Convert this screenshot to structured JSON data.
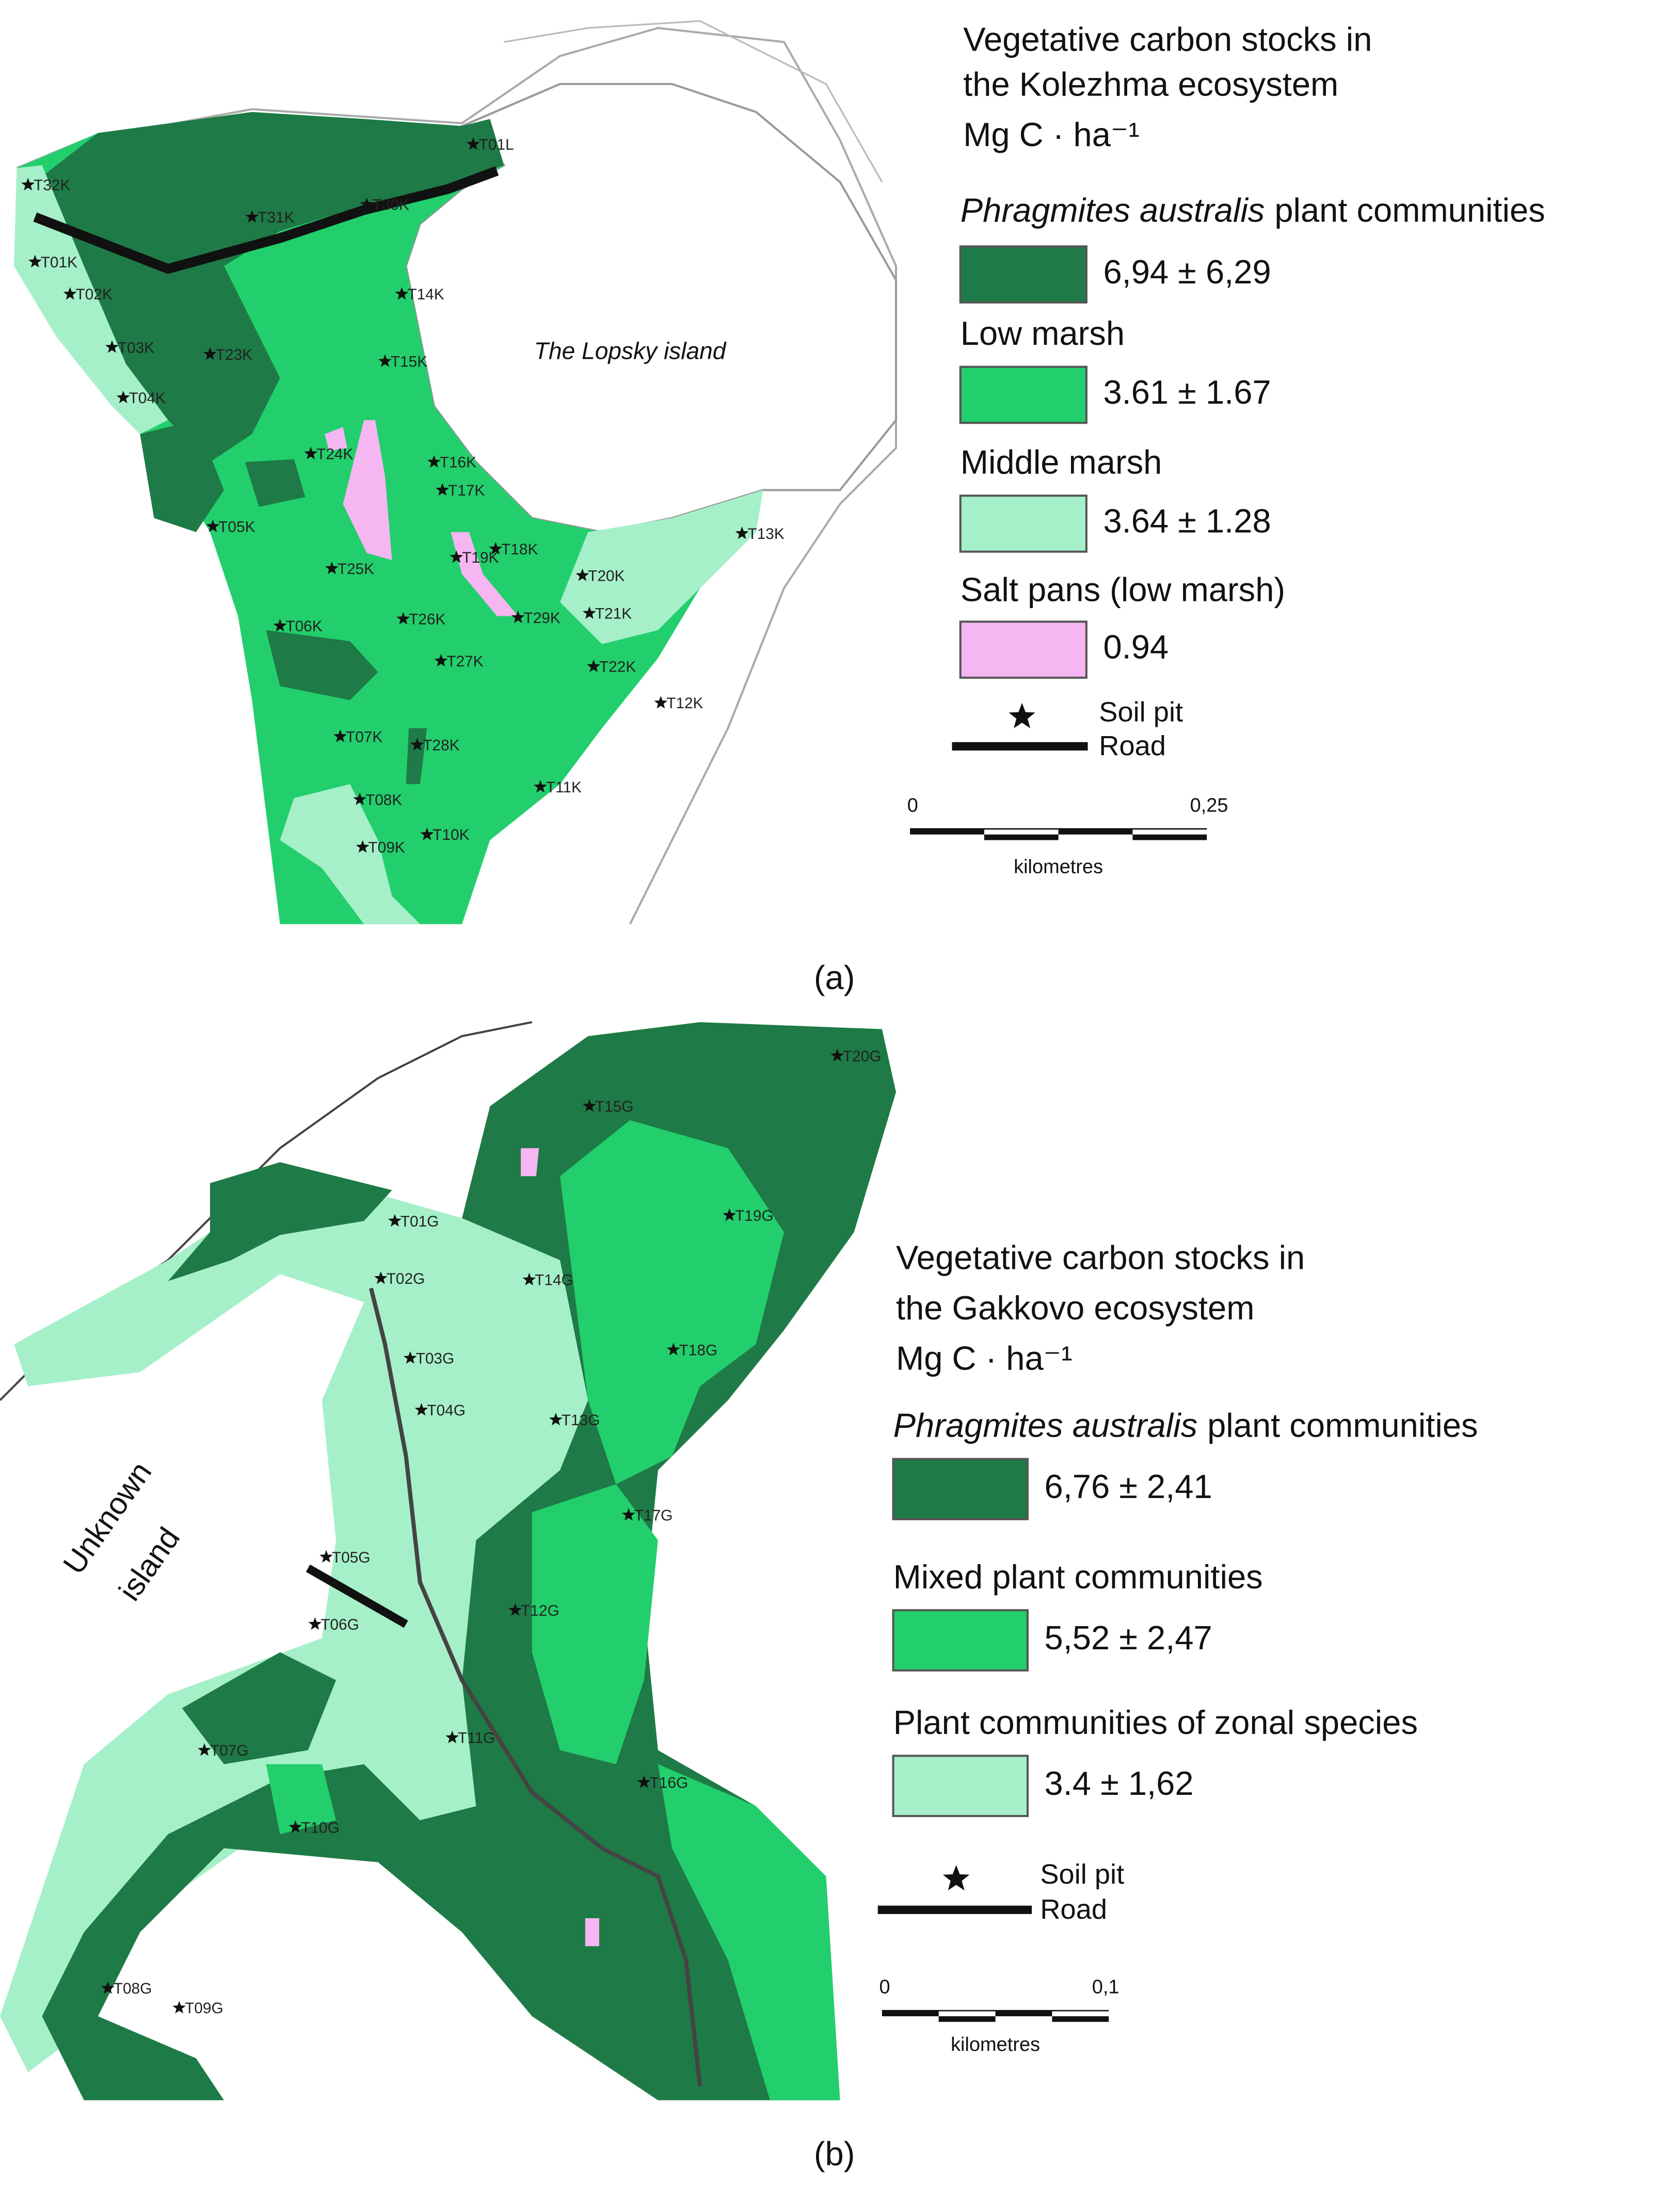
{
  "panel_a": {
    "label": "(a)",
    "legend": {
      "title": [
        "Vegetative carbon stocks in",
        "the Kolezhma ecosystem",
        "Mg C · ha⁻¹"
      ],
      "items": [
        {
          "label_italic": "Phragmites australis",
          "label": "plant communities",
          "value": "6,94 ± 6,29",
          "color": "#1e7a46"
        },
        {
          "label": "Low marsh",
          "value": "3.61 ± 1.67",
          "color": "#22cf6c"
        },
        {
          "label": "Middle marsh",
          "value": "3.64 ± 1.28",
          "color": "#a6f0c9"
        },
        {
          "label": "Salt pans (low marsh)",
          "value": "0.94",
          "color": "#f6b6f2"
        }
      ],
      "soil_pit": "Soil pit",
      "road": "Road",
      "scale": {
        "start": "0",
        "end": "0,25",
        "unit": "kilometres"
      }
    },
    "annotation": "The Lopsky island",
    "sites": [
      "T32K",
      "T01L",
      "T31K",
      "T30K",
      "T01K",
      "T02K",
      "T14K",
      "T03K",
      "T23K",
      "T15K",
      "T04K",
      "T24K",
      "T16K",
      "T17K",
      "T05K",
      "T18K",
      "T19K",
      "T25K",
      "T13K",
      "T20K",
      "T29K",
      "T21K",
      "T06K",
      "T26K",
      "T27K",
      "T22K",
      "T12K",
      "T07K",
      "T28K",
      "T11K",
      "T08K",
      "T09K",
      "T10K"
    ]
  },
  "panel_b": {
    "label": "(b)",
    "legend": {
      "title": [
        "Vegetative carbon stocks in",
        "the Gakkovo ecosystem",
        "Mg C · ha⁻¹"
      ],
      "items": [
        {
          "label_italic": "Phragmites australis",
          "label": "plant communities",
          "value": "6,76 ± 2,41",
          "color": "#1e7a46"
        },
        {
          "label": "Mixed plant communities",
          "value": "5,52 ± 2,47",
          "color": "#22cf6c"
        },
        {
          "label": "Plant communities of zonal species",
          "value": "3.4 ± 1,62",
          "color": "#a6f0c9"
        }
      ],
      "soil_pit": "Soil pit",
      "road": "Road",
      "scale": {
        "start": "0",
        "end": "0,1",
        "unit": "kilometres"
      }
    },
    "annotation": [
      "Unknown",
      "island"
    ],
    "sites": [
      "T20G",
      "T15G",
      "T19G",
      "T01G",
      "T02G",
      "T14G",
      "T18G",
      "T03G",
      "T04G",
      "T13G",
      "T17G",
      "T05G",
      "T12G",
      "T06G",
      "T11G",
      "T07G",
      "T16G",
      "T10G",
      "T08G",
      "T09G"
    ]
  }
}
